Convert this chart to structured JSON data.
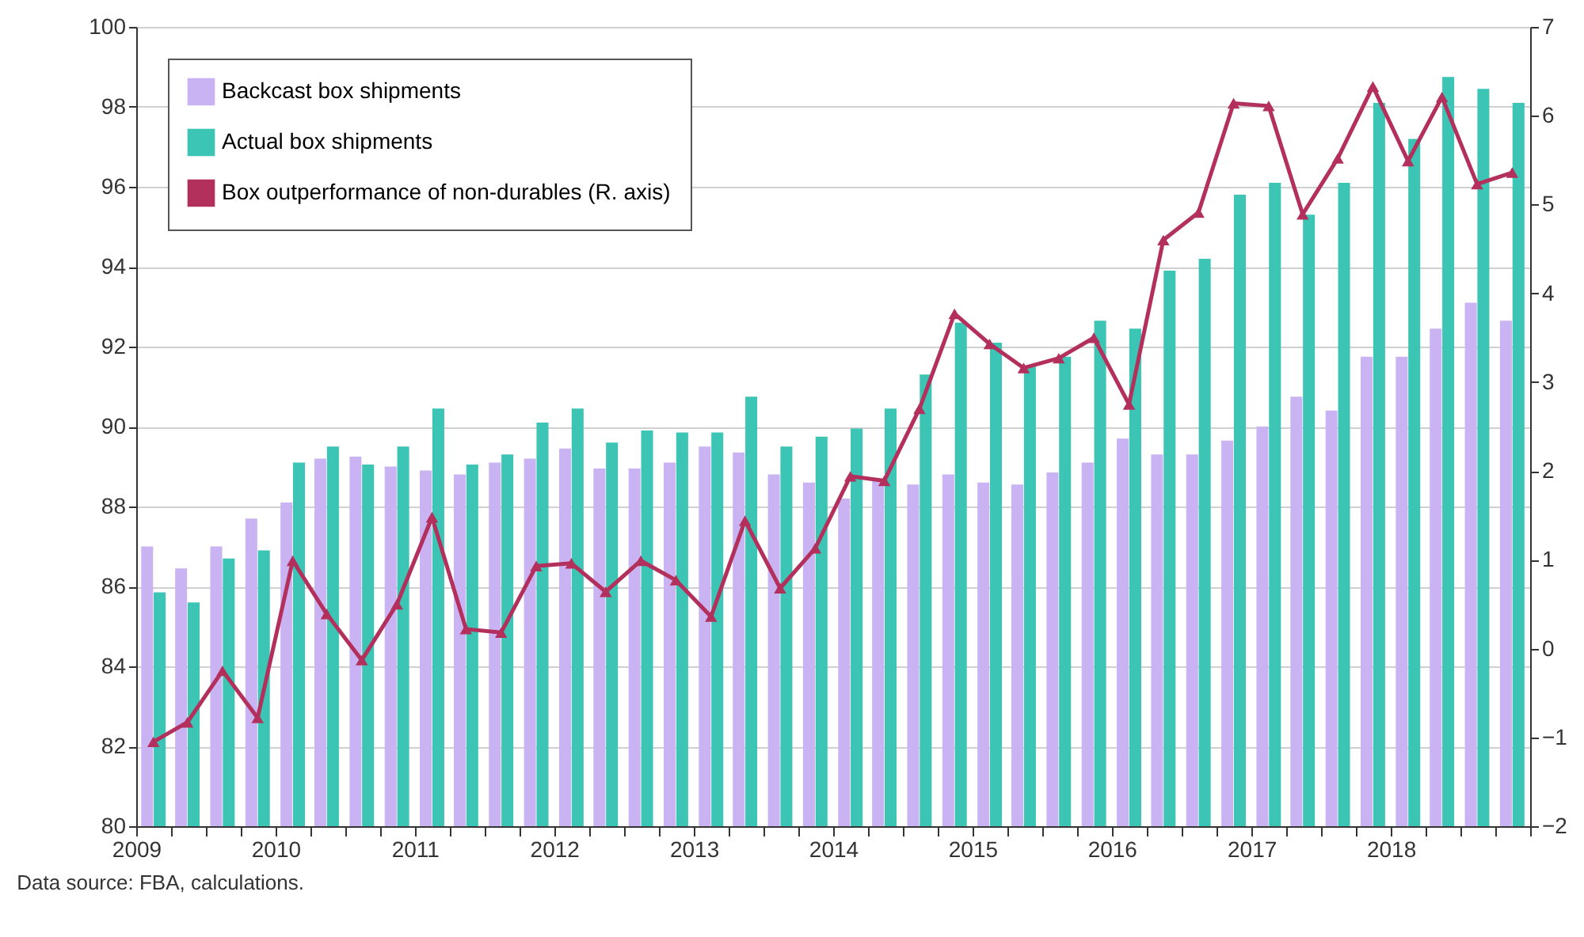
{
  "chart_data": {
    "type": "bar",
    "x": [
      "2009-02-15",
      "2009-05-15",
      "2009-08-15",
      "2009-11-15",
      "2010-02-15",
      "2010-05-15",
      "2010-08-15",
      "2010-11-15",
      "2011-02-15",
      "2011-05-15",
      "2011-08-15",
      "2011-11-15",
      "2012-02-15",
      "2012-05-15",
      "2012-08-15",
      "2012-11-15",
      "2013-02-15",
      "2013-05-15",
      "2013-08-15",
      "2013-11-15",
      "2014-02-15",
      "2014-05-15",
      "2014-08-15",
      "2014-11-15",
      "2015-02-15",
      "2015-05-15",
      "2015-08-15",
      "2015-11-15",
      "2016-02-15",
      "2016-05-15",
      "2016-08-15",
      "2016-11-15",
      "2017-02-15",
      "2017-05-15",
      "2017-08-15",
      "2017-11-15",
      "2018-02-15",
      "2018-05-15",
      "2018-08-15",
      "2018-11-15"
    ],
    "series": [
      {
        "name": "Backcast box shipments",
        "color": "#c9b3f2",
        "values": [
          87.0,
          86.45,
          87.0,
          87.7,
          88.1,
          89.2,
          89.25,
          89.0,
          88.9,
          88.8,
          89.1,
          89.2,
          89.45,
          88.95,
          88.95,
          89.1,
          89.5,
          89.35,
          88.8,
          88.6,
          88.2,
          88.65,
          88.55,
          88.8,
          88.6,
          88.55,
          88.85,
          89.1,
          89.7,
          89.3,
          89.3,
          89.65,
          90.0,
          90.75,
          90.4,
          91.75,
          91.75,
          92.45,
          93.1,
          92.65
        ]
      },
      {
        "name": "Actual box shipments",
        "color": "#3cc4b4",
        "values": [
          85.85,
          85.6,
          86.7,
          86.9,
          89.1,
          89.5,
          89.05,
          89.5,
          90.45,
          89.05,
          89.3,
          90.1,
          90.45,
          89.6,
          89.9,
          89.85,
          89.85,
          90.75,
          89.5,
          89.75,
          89.95,
          90.45,
          91.3,
          92.6,
          92.1,
          91.5,
          91.75,
          92.65,
          92.45,
          93.9,
          94.2,
          95.8,
          96.1,
          95.3,
          96.1,
          98.1,
          97.2,
          98.75,
          98.45,
          98.1
        ]
      },
      {
        "name": "Box outperformance of non-durables (R. axis)",
        "type": "line",
        "axis": "y2",
        "color": "#b3305c",
        "values": [
          -1.05,
          -0.83,
          -0.25,
          -0.78,
          0.99,
          0.39,
          -0.13,
          0.5,
          1.48,
          0.22,
          0.18,
          0.93,
          0.96,
          0.64,
          0.99,
          0.77,
          0.36,
          1.44,
          0.68,
          1.13,
          1.94,
          1.89,
          2.7,
          3.77,
          3.43,
          3.16,
          3.27,
          3.5,
          2.75,
          4.6,
          4.91,
          6.14,
          6.11,
          4.89,
          5.52,
          6.33,
          5.49,
          6.21,
          5.23,
          5.36
        ]
      }
    ],
    "xlim": [
      "2009-01-01",
      "2019-01-01"
    ],
    "xticks": [
      "2009",
      {
        "value": "2009-04-01",
        "label": null
      },
      {
        "value": "2009-07-01",
        "label": null
      },
      {
        "value": "2009-10-01",
        "label": null
      },
      "2010",
      {
        "value": "2010-04-01",
        "label": null
      },
      {
        "value": "2010-07-01",
        "label": null
      },
      {
        "value": "2010-10-01",
        "label": null
      },
      "2011",
      {
        "value": "2011-04-01",
        "label": null
      },
      {
        "value": "2011-07-01",
        "label": null
      },
      {
        "value": "2011-10-01",
        "label": null
      },
      "2012",
      {
        "value": "2012-04-01",
        "label": null
      },
      {
        "value": "2012-07-01",
        "label": null
      },
      {
        "value": "2012-10-01",
        "label": null
      },
      "2013",
      {
        "value": "2013-04-01",
        "label": null
      },
      {
        "value": "2013-07-01",
        "label": null
      },
      {
        "value": "2013-10-01",
        "label": null
      },
      "2014",
      {
        "value": "2014-04-01",
        "label": null
      },
      {
        "value": "2014-07-01",
        "label": null
      },
      {
        "value": "2014-10-01",
        "label": null
      },
      "2015",
      {
        "value": "2015-04-01",
        "label": null
      },
      {
        "value": "2015-07-01",
        "label": null
      },
      {
        "value": "2015-10-01",
        "label": null
      },
      "2016",
      {
        "value": "2016-04-01",
        "label": null
      },
      {
        "value": "2016-07-01",
        "label": null
      },
      {
        "value": "2016-10-01",
        "label": null
      },
      "2017",
      {
        "value": "2017-04-01",
        "label": null
      },
      {
        "value": "2017-07-01",
        "label": null
      },
      {
        "value": "2017-10-01",
        "label": null
      },
      "2018",
      {
        "value": "2018-04-01",
        "label": null
      },
      {
        "value": "2018-07-01",
        "label": null
      },
      {
        "value": "2018-10-01",
        "label": null
      },
      {
        "value": "2019",
        "label": null
      }
    ],
    "ylim": [
      80,
      100
    ],
    "yticks": [
      80,
      82,
      84,
      86,
      88,
      90,
      92,
      94,
      96,
      98,
      100
    ],
    "y2lim": [
      -2,
      7
    ],
    "y2ticks": [
      -2,
      -1,
      0,
      1,
      2,
      3,
      4,
      5,
      6,
      7
    ],
    "grid": "y",
    "legend": "top left",
    "marker": "triangle",
    "line_style": "solid",
    "annotations": [
      "Data source: FBA, calculations."
    ]
  }
}
